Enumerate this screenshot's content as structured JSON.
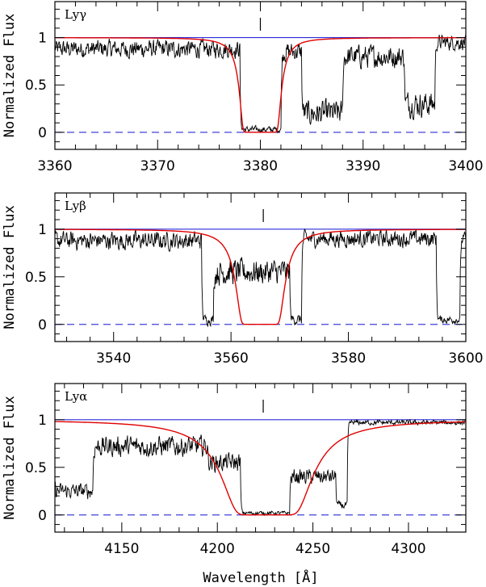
{
  "chart_data": [
    {
      "type": "line",
      "label": "Lyγ",
      "xlim": [
        3360,
        3400
      ],
      "ylim": [
        -0.18,
        1.38
      ],
      "xticks": [
        3360,
        3370,
        3380,
        3390,
        3400
      ],
      "yticks": [
        0,
        0.5,
        1
      ],
      "ylabel": "Normalized Flux",
      "marker_x": 3380.0,
      "fit": {
        "name": "Voigt profile fit",
        "center": 3380.0,
        "depth": 1.0,
        "core_halfwidth": 1.4,
        "wing": 0.45
      },
      "continuum": 1.0,
      "zero_level": 0.0,
      "spectrum_segments": [
        {
          "x_start": 3360,
          "x_end": 3378,
          "level": 0.88,
          "noise": 0.14
        },
        {
          "x_start": 3378,
          "x_end": 3382,
          "level": 0.03,
          "noise": 0.05
        },
        {
          "x_start": 3382,
          "x_end": 3384,
          "level": 0.85,
          "noise": 0.15
        },
        {
          "x_start": 3384,
          "x_end": 3388,
          "level": 0.2,
          "noise": 0.2
        },
        {
          "x_start": 3388,
          "x_end": 3394,
          "level": 0.8,
          "noise": 0.18
        },
        {
          "x_start": 3394,
          "x_end": 3397,
          "level": 0.3,
          "noise": 0.2
        },
        {
          "x_start": 3397,
          "x_end": 3400,
          "level": 0.95,
          "noise": 0.12
        }
      ]
    },
    {
      "type": "line",
      "label": "Lyβ",
      "xlim": [
        3530,
        3600
      ],
      "ylim": [
        -0.18,
        1.38
      ],
      "xticks": [
        3540,
        3560,
        3580,
        3600
      ],
      "yticks": [
        0,
        0.5,
        1
      ],
      "ylabel": "Normalized Flux",
      "marker_x": 3565.5,
      "fit": {
        "name": "Voigt profile fit",
        "center": 3565.0,
        "depth": 1.0,
        "core_halfwidth": 2.5,
        "wing": 1.2
      },
      "continuum": 1.0,
      "zero_level": 0.0,
      "spectrum_segments": [
        {
          "x_start": 3530,
          "x_end": 3555,
          "level": 0.88,
          "noise": 0.14
        },
        {
          "x_start": 3555,
          "x_end": 3557,
          "level": 0.05,
          "noise": 0.08
        },
        {
          "x_start": 3557,
          "x_end": 3570,
          "level": 0.55,
          "noise": 0.2
        },
        {
          "x_start": 3570,
          "x_end": 3572,
          "level": 0.05,
          "noise": 0.08
        },
        {
          "x_start": 3572,
          "x_end": 3595,
          "level": 0.9,
          "noise": 0.13
        },
        {
          "x_start": 3595,
          "x_end": 3599,
          "level": 0.05,
          "noise": 0.06
        },
        {
          "x_start": 3599,
          "x_end": 3600,
          "level": 0.9,
          "noise": 0.1
        }
      ]
    },
    {
      "type": "line",
      "label": "Lyα",
      "xlim": [
        4115,
        4330
      ],
      "ylim": [
        -0.18,
        1.38
      ],
      "xticks": [
        4150,
        4200,
        4250,
        4300
      ],
      "yticks": [
        0,
        0.5,
        1
      ],
      "ylabel": "Normalized Flux",
      "xlabel": "Wavelength [Å]",
      "marker_x": 4224.0,
      "fit": {
        "name": "Voigt profile fit",
        "center": 4226.0,
        "depth": 1.0,
        "core_halfwidth": 10.0,
        "wing": 10.0
      },
      "continuum": 1.0,
      "zero_level": 0.0,
      "spectrum_segments": [
        {
          "x_start": 4115,
          "x_end": 4135,
          "level": 0.25,
          "noise": 0.12
        },
        {
          "x_start": 4135,
          "x_end": 4195,
          "level": 0.72,
          "noise": 0.16
        },
        {
          "x_start": 4195,
          "x_end": 4212,
          "level": 0.55,
          "noise": 0.14
        },
        {
          "x_start": 4212,
          "x_end": 4238,
          "level": 0.02,
          "noise": 0.03
        },
        {
          "x_start": 4238,
          "x_end": 4262,
          "level": 0.4,
          "noise": 0.12
        },
        {
          "x_start": 4262,
          "x_end": 4268,
          "level": 0.1,
          "noise": 0.06
        },
        {
          "x_start": 4268,
          "x_end": 4330,
          "level": 0.97,
          "noise": 0.04
        }
      ]
    }
  ]
}
